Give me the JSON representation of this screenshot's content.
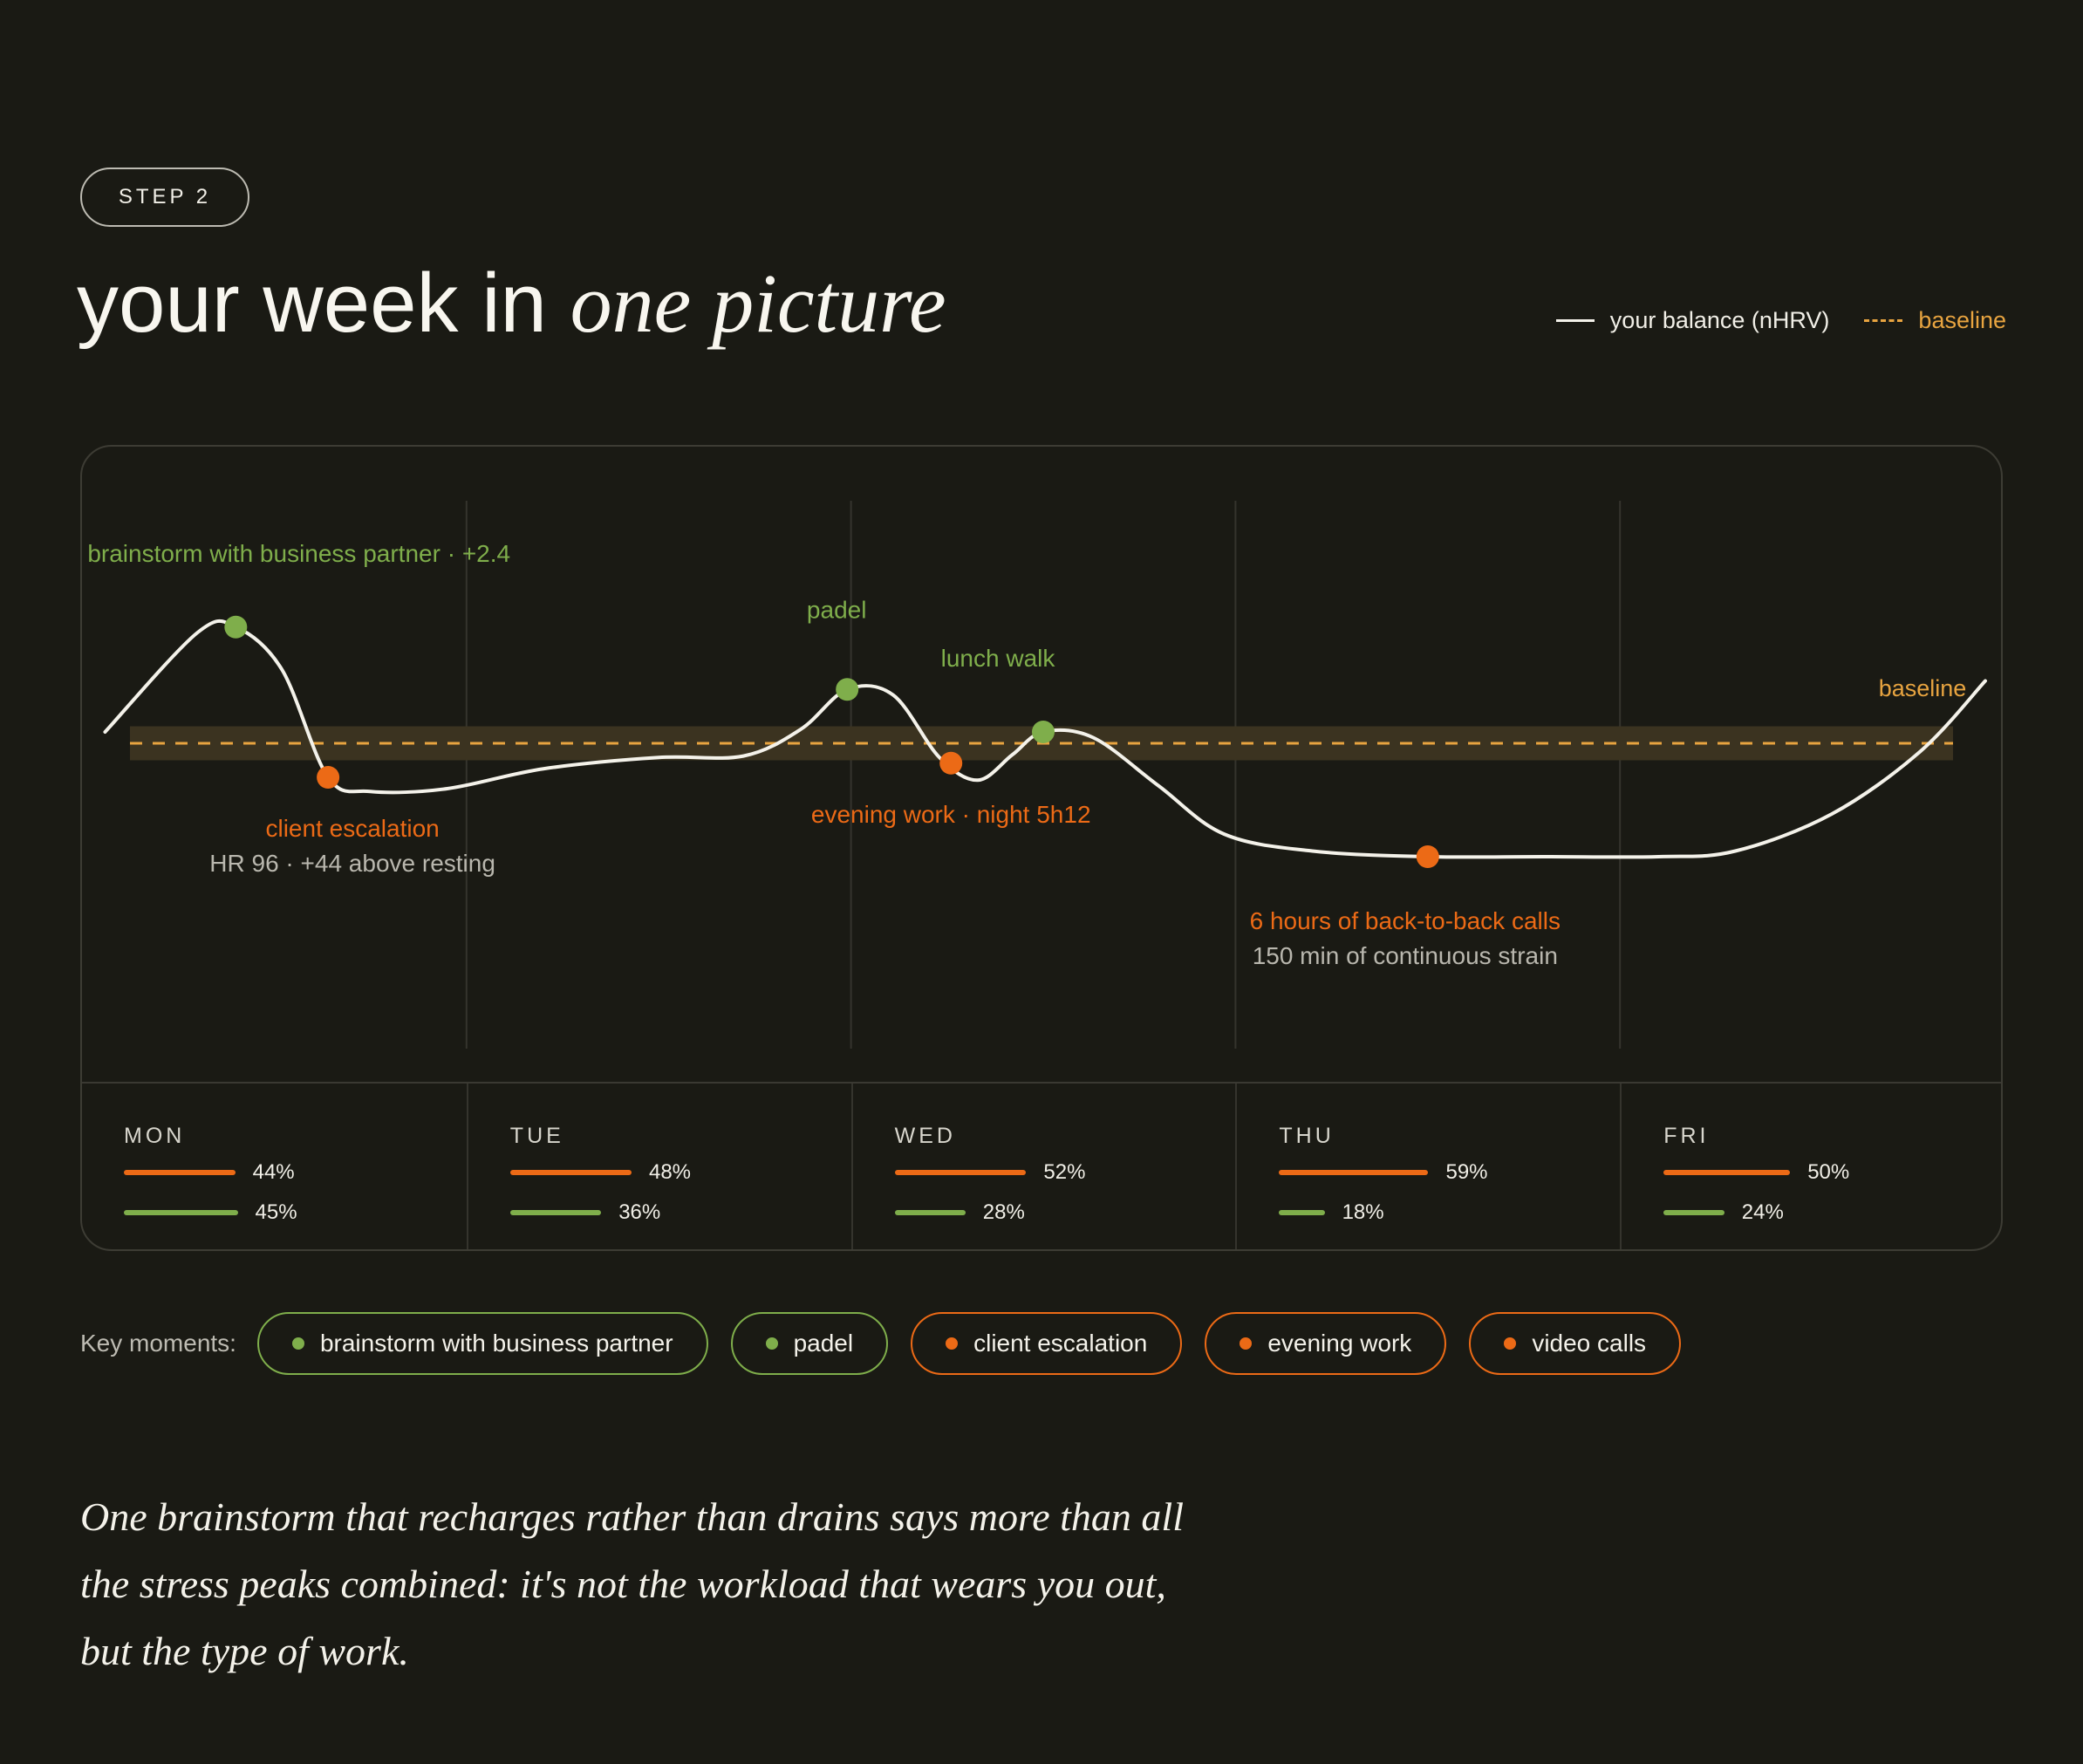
{
  "step_label": "STEP 2",
  "title": {
    "plain": "your week in",
    "italic": "one picture"
  },
  "legend": [
    {
      "label": "your balance (nHRV)",
      "style": "solid",
      "color": "#f4f2ea"
    },
    {
      "label": "baseline",
      "style": "dashed",
      "color": "#e8a440"
    }
  ],
  "chart_data": {
    "type": "line",
    "x_categories": [
      "MON",
      "TUE",
      "WED",
      "THU",
      "FRI"
    ],
    "x_range": [
      0,
      5
    ],
    "y_range": [
      -6,
      6
    ],
    "baseline": {
      "value": 0,
      "label": "baseline",
      "band": [
        -0.6,
        0.6
      ]
    },
    "series": [
      {
        "name": "your balance (nHRV)",
        "points": [
          {
            "x": 0.06,
            "y": 0.4
          },
          {
            "x": 0.3,
            "y": 3.9
          },
          {
            "x": 0.4,
            "y": 4.1
          },
          {
            "x": 0.52,
            "y": 2.6
          },
          {
            "x": 0.64,
            "y": -1.2
          },
          {
            "x": 0.75,
            "y": -1.7
          },
          {
            "x": 0.95,
            "y": -1.6
          },
          {
            "x": 1.2,
            "y": -0.9
          },
          {
            "x": 1.5,
            "y": -0.5
          },
          {
            "x": 1.72,
            "y": -0.45
          },
          {
            "x": 1.87,
            "y": 0.5
          },
          {
            "x": 1.99,
            "y": 1.9
          },
          {
            "x": 2.11,
            "y": 1.7
          },
          {
            "x": 2.23,
            "y": -0.5
          },
          {
            "x": 2.33,
            "y": -1.3
          },
          {
            "x": 2.42,
            "y": -0.4
          },
          {
            "x": 2.5,
            "y": 0.4
          },
          {
            "x": 2.63,
            "y": 0.2
          },
          {
            "x": 2.8,
            "y": -1.5
          },
          {
            "x": 2.97,
            "y": -3.2
          },
          {
            "x": 3.2,
            "y": -3.8
          },
          {
            "x": 3.5,
            "y": -4.0
          },
          {
            "x": 3.8,
            "y": -4.0
          },
          {
            "x": 4.1,
            "y": -4.0
          },
          {
            "x": 4.3,
            "y": -3.8
          },
          {
            "x": 4.55,
            "y": -2.5
          },
          {
            "x": 4.78,
            "y": -0.3
          },
          {
            "x": 4.95,
            "y": 2.2
          }
        ]
      }
    ],
    "moments": [
      {
        "x": 0.4,
        "y": 4.1,
        "kind": "positive",
        "label": "brainstorm with business partner · +2.4",
        "sublabel": ""
      },
      {
        "x": 0.64,
        "y": -1.2,
        "kind": "negative",
        "label": "client escalation",
        "sublabel": "HR 96 · +44 above resting"
      },
      {
        "x": 1.99,
        "y": 1.9,
        "kind": "positive",
        "label": "padel",
        "sublabel": ""
      },
      {
        "x": 2.26,
        "y": -0.7,
        "kind": "negative",
        "label": "evening work · night 5h12",
        "sublabel": ""
      },
      {
        "x": 2.5,
        "y": 0.4,
        "kind": "positive",
        "label": "lunch walk",
        "sublabel": ""
      },
      {
        "x": 3.5,
        "y": -4.0,
        "kind": "negative",
        "label": "6 hours of back-to-back calls",
        "sublabel": "150 min of continuous strain"
      }
    ],
    "day_stats": [
      {
        "day": "MON",
        "orange_pct": 44,
        "green_pct": 45,
        "orange_label": "44%",
        "green_label": "45%"
      },
      {
        "day": "TUE",
        "orange_pct": 48,
        "green_pct": 36,
        "orange_label": "48%",
        "green_label": "36%"
      },
      {
        "day": "WED",
        "orange_pct": 52,
        "green_pct": 28,
        "orange_label": "52%",
        "green_label": "28%"
      },
      {
        "day": "THU",
        "orange_pct": 59,
        "green_pct": 18,
        "orange_label": "59%",
        "green_label": "18%"
      },
      {
        "day": "FRI",
        "orange_pct": 50,
        "green_pct": 24,
        "orange_label": "50%",
        "green_label": "24%"
      }
    ],
    "colors": {
      "positive": "#7fae4b",
      "negative": "#ec6a16",
      "line": "#f4f2ea",
      "baseline": "#e8a440"
    }
  },
  "key_moments": {
    "label": "Key moments:",
    "chips": [
      {
        "label": "brainstorm with business partner",
        "kind": "positive"
      },
      {
        "label": "padel",
        "kind": "positive"
      },
      {
        "label": "client escalation",
        "kind": "negative"
      },
      {
        "label": "evening work",
        "kind": "negative"
      },
      {
        "label": "video calls",
        "kind": "negative"
      }
    ]
  },
  "quote": "One brainstorm that recharges rather than drains says more than all the stress peaks combined: it's not the workload that wears you out, but the type of work."
}
